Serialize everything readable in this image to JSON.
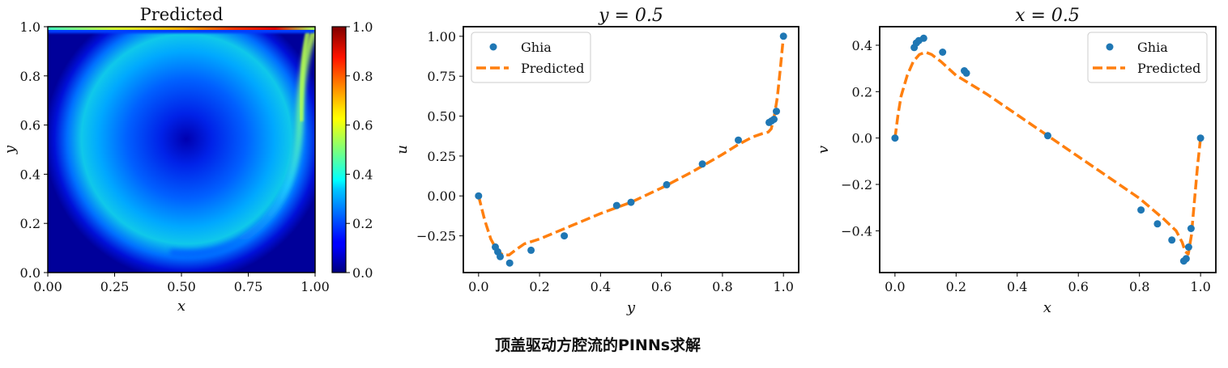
{
  "caption": "顶盖驱动方腔流的PINNs求解",
  "colors": {
    "ghia": "#1f77b4",
    "predicted": "#ff7f0e",
    "frame": "#000000"
  },
  "chart_data": [
    {
      "type": "heatmap",
      "title": "Predicted",
      "xlabel": "x",
      "ylabel": "y",
      "xlim": [
        0,
        1
      ],
      "ylim": [
        0,
        1
      ],
      "xticks": [
        "0.00",
        "0.25",
        "0.50",
        "0.75",
        "1.00"
      ],
      "yticks": [
        "0.0",
        "0.2",
        "0.4",
        "0.6",
        "0.8",
        "1.0"
      ],
      "colormap": "jet",
      "colorbar": {
        "range": [
          0,
          1
        ],
        "ticks": [
          "0.0",
          "0.2",
          "0.4",
          "0.6",
          "0.8",
          "1.0"
        ]
      },
      "vortex_center": [
        0.52,
        0.53
      ]
    },
    {
      "type": "line",
      "title": "y = 0.5",
      "xlabel": "y",
      "ylabel": "u",
      "xlim": [
        -0.05,
        1.05
      ],
      "ylim": [
        -0.48,
        1.06
      ],
      "xticks": [
        "0.0",
        "0.2",
        "0.4",
        "0.6",
        "0.8",
        "1.0"
      ],
      "yticks": [
        "1.00",
        "0.75",
        "0.50",
        "0.25",
        "0.00",
        "−0.25"
      ],
      "legend": {
        "placement": "upper-left",
        "entries": [
          "Ghia",
          "Predicted"
        ]
      },
      "series": [
        {
          "name": "Ghia",
          "kind": "scatter",
          "x": [
            0.0,
            0.055,
            0.063,
            0.071,
            0.102,
            0.172,
            0.281,
            0.453,
            0.5,
            0.617,
            0.734,
            0.852,
            0.953,
            0.961,
            0.969,
            0.977,
            1.0
          ],
          "y": [
            0.0,
            -0.32,
            -0.35,
            -0.38,
            -0.42,
            -0.34,
            -0.25,
            -0.06,
            -0.04,
            0.07,
            0.2,
            0.35,
            0.46,
            0.47,
            0.48,
            0.53,
            1.0
          ]
        },
        {
          "name": "Predicted",
          "kind": "line",
          "x": [
            0.0,
            0.02,
            0.04,
            0.06,
            0.08,
            0.1,
            0.12,
            0.15,
            0.2,
            0.3,
            0.4,
            0.5,
            0.6,
            0.7,
            0.8,
            0.85,
            0.9,
            0.93,
            0.95,
            0.96,
            0.97,
            0.98,
            0.99,
            1.0
          ],
          "y": [
            0.0,
            -0.15,
            -0.27,
            -0.34,
            -0.37,
            -0.37,
            -0.34,
            -0.3,
            -0.27,
            -0.19,
            -0.11,
            -0.04,
            0.05,
            0.15,
            0.26,
            0.32,
            0.37,
            0.39,
            0.4,
            0.42,
            0.5,
            0.62,
            0.8,
            1.0
          ]
        }
      ]
    },
    {
      "type": "line",
      "title": "x = 0.5",
      "xlabel": "x",
      "ylabel": "v",
      "xlim": [
        -0.05,
        1.05
      ],
      "ylim": [
        -0.58,
        0.48
      ],
      "xticks": [
        "0.0",
        "0.2",
        "0.4",
        "0.6",
        "0.8",
        "1.0"
      ],
      "yticks": [
        "0.4",
        "0.2",
        "0.0",
        "−0.2",
        "−0.4"
      ],
      "legend": {
        "placement": "upper-right",
        "entries": [
          "Ghia",
          "Predicted"
        ]
      },
      "series": [
        {
          "name": "Ghia",
          "kind": "scatter",
          "x": [
            0.0,
            0.063,
            0.07,
            0.078,
            0.094,
            0.156,
            0.227,
            0.234,
            0.5,
            0.805,
            0.859,
            0.906,
            0.945,
            0.953,
            0.961,
            0.969,
            1.0
          ],
          "y": [
            0.0,
            0.39,
            0.41,
            0.42,
            0.43,
            0.37,
            0.29,
            0.28,
            0.01,
            -0.31,
            -0.37,
            -0.44,
            -0.53,
            -0.52,
            -0.47,
            -0.39,
            0.0
          ]
        },
        {
          "name": "Predicted",
          "kind": "line",
          "x": [
            0.0,
            0.01,
            0.02,
            0.04,
            0.06,
            0.08,
            0.1,
            0.12,
            0.15,
            0.2,
            0.3,
            0.4,
            0.5,
            0.6,
            0.7,
            0.8,
            0.88,
            0.92,
            0.94,
            0.95,
            0.96,
            0.97,
            0.98,
            0.99,
            1.0
          ],
          "y": [
            0.0,
            0.1,
            0.18,
            0.27,
            0.33,
            0.36,
            0.37,
            0.36,
            0.33,
            0.27,
            0.19,
            0.1,
            0.01,
            -0.08,
            -0.17,
            -0.26,
            -0.35,
            -0.4,
            -0.45,
            -0.49,
            -0.5,
            -0.42,
            -0.27,
            -0.12,
            0.0
          ]
        }
      ]
    }
  ]
}
